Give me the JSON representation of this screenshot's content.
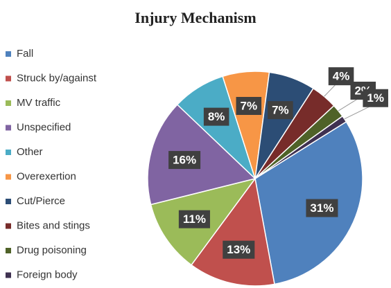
{
  "chart_data": {
    "type": "pie",
    "title": "Injury Mechanism",
    "categories": [
      "Fall",
      "Struck by/against",
      "MV traffic",
      "Unspecified",
      "Other",
      "Overexertion",
      "Cut/Pierce",
      "Bites and stings",
      "Drug poisoning",
      "Foreign body"
    ],
    "values": [
      31,
      13,
      11,
      16,
      8,
      7,
      7,
      4,
      2,
      1
    ],
    "value_labels": [
      "31%",
      "13%",
      "11%",
      "16%",
      "8%",
      "7%",
      "7%",
      "4%",
      "2%",
      "1%"
    ],
    "colors": [
      "#4f81bd",
      "#c0504d",
      "#9bbb59",
      "#8064a2",
      "#4bacc6",
      "#f79646",
      "#2c4d75",
      "#772c2a",
      "#4f6228",
      "#3f3151"
    ],
    "legend": "left"
  }
}
